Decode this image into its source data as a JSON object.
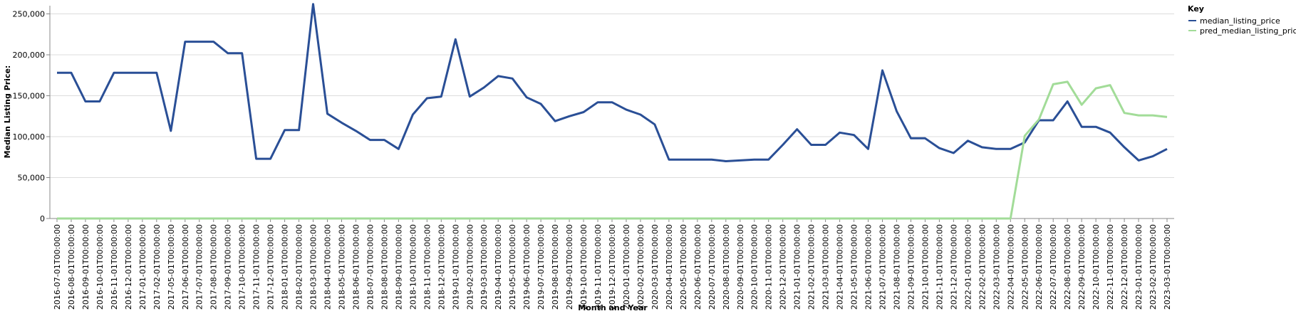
{
  "chart_data": {
    "type": "line",
    "x_label": "Month and Year",
    "y_label": "Median Listing Price:",
    "legend_title": "Key",
    "categories": [
      "2016-07-01T00:00:00",
      "2016-08-01T00:00:00",
      "2016-09-01T00:00:00",
      "2016-10-01T00:00:00",
      "2016-11-01T00:00:00",
      "2016-12-01T00:00:00",
      "2017-01-01T00:00:00",
      "2017-02-01T00:00:00",
      "2017-05-01T00:00:00",
      "2017-06-01T00:00:00",
      "2017-07-01T00:00:00",
      "2017-08-01T00:00:00",
      "2017-09-01T00:00:00",
      "2017-10-01T00:00:00",
      "2017-11-01T00:00:00",
      "2017-12-01T00:00:00",
      "2018-01-01T00:00:00",
      "2018-02-01T00:00:00",
      "2018-03-01T00:00:00",
      "2018-04-01T00:00:00",
      "2018-05-01T00:00:00",
      "2018-06-01T00:00:00",
      "2018-07-01T00:00:00",
      "2018-08-01T00:00:00",
      "2018-09-01T00:00:00",
      "2018-10-01T00:00:00",
      "2018-11-01T00:00:00",
      "2018-12-01T00:00:00",
      "2019-01-01T00:00:00",
      "2019-02-01T00:00:00",
      "2019-03-01T00:00:00",
      "2019-04-01T00:00:00",
      "2019-05-01T00:00:00",
      "2019-06-01T00:00:00",
      "2019-07-01T00:00:00",
      "2019-08-01T00:00:00",
      "2019-09-01T00:00:00",
      "2019-10-01T00:00:00",
      "2019-11-01T00:00:00",
      "2019-12-01T00:00:00",
      "2020-01-01T00:00:00",
      "2020-02-01T00:00:00",
      "2020-03-01T00:00:00",
      "2020-04-01T00:00:00",
      "2020-05-01T00:00:00",
      "2020-06-01T00:00:00",
      "2020-07-01T00:00:00",
      "2020-08-01T00:00:00",
      "2020-09-01T00:00:00",
      "2020-10-01T00:00:00",
      "2020-11-01T00:00:00",
      "2020-12-01T00:00:00",
      "2021-01-01T00:00:00",
      "2021-02-01T00:00:00",
      "2021-03-01T00:00:00",
      "2021-04-01T00:00:00",
      "2021-05-01T00:00:00",
      "2021-06-01T00:00:00",
      "2021-07-01T00:00:00",
      "2021-08-01T00:00:00",
      "2021-09-01T00:00:00",
      "2021-10-01T00:00:00",
      "2021-11-01T00:00:00",
      "2021-12-01T00:00:00",
      "2022-01-01T00:00:00",
      "2022-02-01T00:00:00",
      "2022-03-01T00:00:00",
      "2022-04-01T00:00:00",
      "2022-05-01T00:00:00",
      "2022-06-01T00:00:00",
      "2022-07-01T00:00:00",
      "2022-08-01T00:00:00",
      "2022-09-01T00:00:00",
      "2022-10-01T00:00:00",
      "2022-11-01T00:00:00",
      "2022-12-01T00:00:00",
      "2023-01-01T00:00:00",
      "2023-02-01T00:00:00",
      "2023-03-01T00:00:00"
    ],
    "series": [
      {
        "name": "median_listing_price",
        "color": "#2a4f96",
        "values": [
          178000,
          178000,
          143000,
          143000,
          178000,
          178000,
          178000,
          178000,
          107000,
          216000,
          216000,
          216000,
          202000,
          202000,
          73000,
          73000,
          108000,
          108000,
          262000,
          128000,
          117000,
          107000,
          96000,
          96000,
          85000,
          127000,
          147000,
          149000,
          219000,
          149000,
          160000,
          174000,
          171000,
          148000,
          140000,
          119000,
          125000,
          130000,
          142000,
          142000,
          133000,
          127000,
          115000,
          72000,
          72000,
          72000,
          72000,
          70000,
          71000,
          72000,
          72000,
          90000,
          109000,
          90000,
          90000,
          105000,
          102000,
          85000,
          181000,
          131000,
          98000,
          98000,
          86000,
          80000,
          95000,
          87000,
          85000,
          85000,
          93000,
          120000,
          120000,
          143000,
          112000,
          112000,
          105000,
          87000,
          71000,
          76000,
          85000
        ]
      },
      {
        "name": "pred_median_listing_price",
        "color": "#a2dc98",
        "values": [
          0,
          0,
          0,
          0,
          0,
          0,
          0,
          0,
          0,
          0,
          0,
          0,
          0,
          0,
          0,
          0,
          0,
          0,
          0,
          0,
          0,
          0,
          0,
          0,
          0,
          0,
          0,
          0,
          0,
          0,
          0,
          0,
          0,
          0,
          0,
          0,
          0,
          0,
          0,
          0,
          0,
          0,
          0,
          0,
          0,
          0,
          0,
          0,
          0,
          0,
          0,
          0,
          0,
          0,
          0,
          0,
          0,
          0,
          0,
          0,
          0,
          0,
          0,
          0,
          0,
          0,
          0,
          0,
          101000,
          121000,
          164000,
          167000,
          139000,
          159000,
          163000,
          129000,
          126000,
          126000,
          124000
        ]
      }
    ],
    "ylim": [
      0,
      260000
    ],
    "yticks": [
      0,
      {
        "value": 50000,
        "label": "50,000"
      },
      {
        "value": 100000,
        "label": "100,000"
      },
      {
        "value": 150000,
        "label": "150,000"
      },
      {
        "value": 200000,
        "label": "200,000"
      },
      {
        "value": 250000,
        "label": "250,000"
      }
    ],
    "grid": true,
    "legend": "right"
  }
}
